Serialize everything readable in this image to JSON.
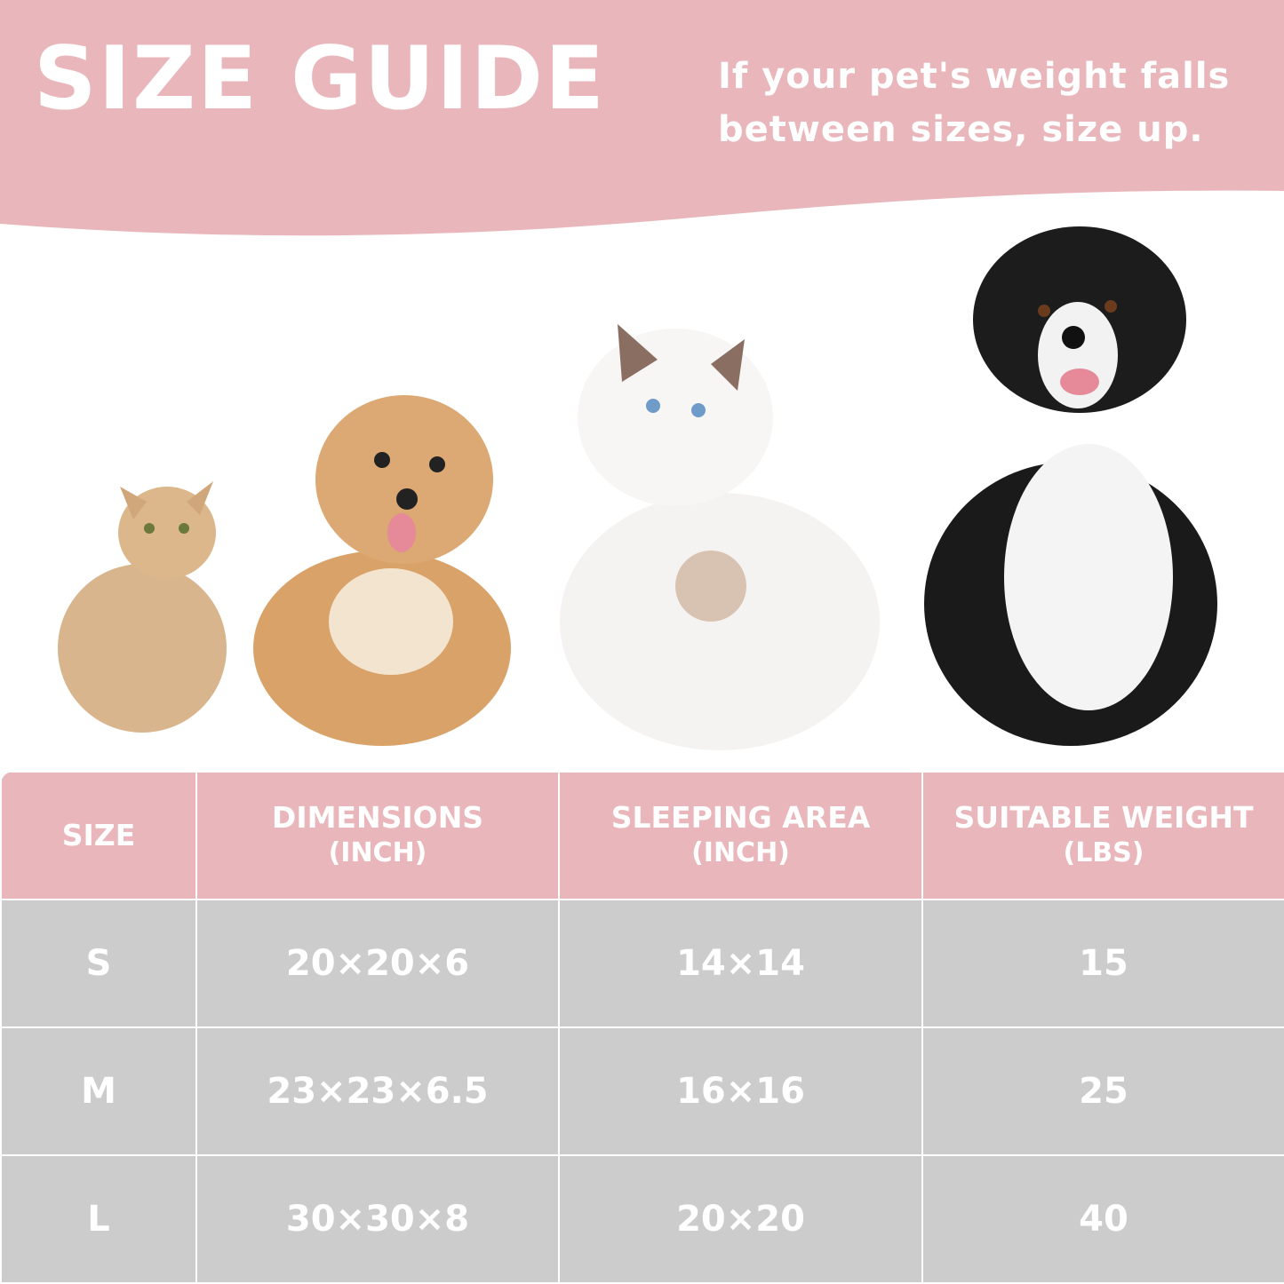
{
  "header": {
    "title": "SIZE GUIDE",
    "note_line1": "If your pet's weight falls",
    "note_line2": "between sizes, size up."
  },
  "colors": {
    "accent": "#e9b7bb",
    "row_bg": "#cccccc",
    "text": "#ffffff"
  },
  "images": [
    "small-cat",
    "small-dog",
    "large-cat",
    "large-dog"
  ],
  "table": {
    "headers": [
      {
        "label": "SIZE",
        "unit": ""
      },
      {
        "label": "DIMENSIONS",
        "unit": "(INCH)"
      },
      {
        "label": "SLEEPING AREA",
        "unit": "(INCH)"
      },
      {
        "label": "SUITABLE WEIGHT",
        "unit": "(LBS)"
      }
    ],
    "rows": [
      [
        "S",
        "20×20×6",
        "14×14",
        "15"
      ],
      [
        "M",
        "23×23×6.5",
        "16×16",
        "25"
      ],
      [
        "L",
        "30×30×8",
        "20×20",
        "40"
      ]
    ]
  }
}
